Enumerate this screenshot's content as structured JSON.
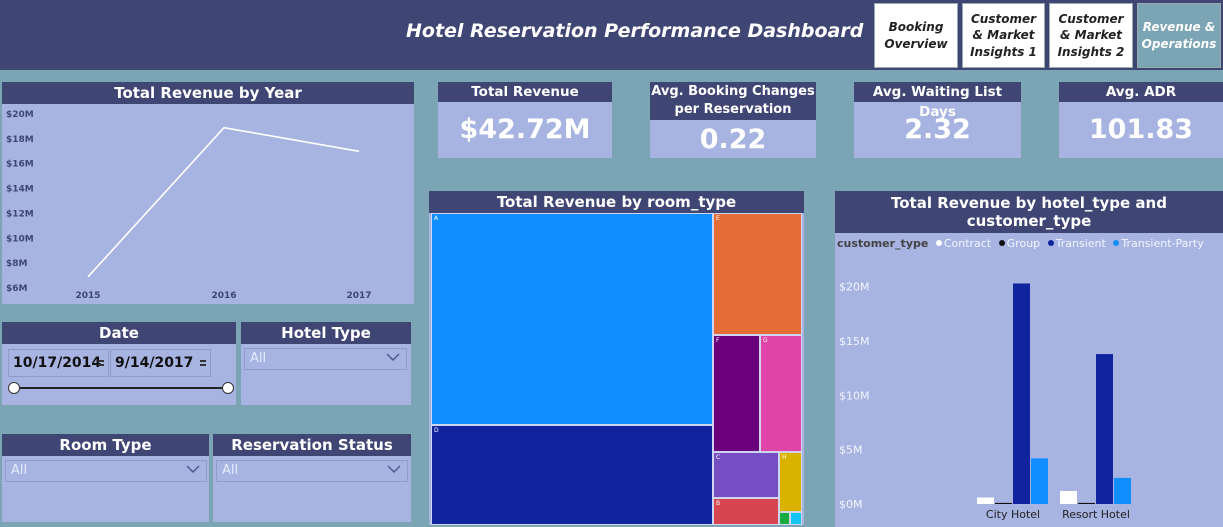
{
  "header": {
    "title": "Hotel Reservation Performance Dashboard",
    "tabs": [
      {
        "label": "Booking Overview",
        "active": false
      },
      {
        "label": "Customer & Market Insights 1",
        "active": false
      },
      {
        "label": "Customer & Market Insights 2",
        "active": false
      },
      {
        "label": "Revenue & Operations",
        "active": true
      }
    ]
  },
  "kpis": {
    "total_revenue": {
      "title": "Total Revenue",
      "value": "$42.72M"
    },
    "avg_booking_changes": {
      "title": "Avg. Booking Changes per Reservation",
      "value": "0.22"
    },
    "avg_waiting_list": {
      "title": "Avg. Waiting List Days",
      "value": "2.32"
    },
    "avg_adr": {
      "title": "Avg. ADR",
      "value": "101.83"
    }
  },
  "slicers": {
    "date": {
      "title": "Date",
      "start": "10/17/2014",
      "end": "9/14/2017"
    },
    "hotel_type": {
      "title": "Hotel Type",
      "value": "All"
    },
    "room_type": {
      "title": "Room Type",
      "value": "All"
    },
    "reservation_status": {
      "title": "Reservation Status",
      "value": "All"
    }
  },
  "chart_data": [
    {
      "type": "line",
      "title": "Total Revenue by Year",
      "x": [
        "2015",
        "2016",
        "2017"
      ],
      "values": [
        6.9,
        18.9,
        17.0
      ],
      "unit": "M",
      "yticks": [
        "$20M",
        "$18M",
        "$16M",
        "$14M",
        "$12M",
        "$10M",
        "$8M",
        "$6M"
      ],
      "ylim": [
        6,
        20
      ],
      "color": "#ffffff"
    },
    {
      "type": "treemap",
      "title": "Total Revenue by room_type",
      "labels": [
        "A",
        "D",
        "E",
        "F",
        "G",
        "C",
        "H",
        "B"
      ],
      "colors": [
        "#118dff",
        "#12239e",
        "#e66c37",
        "#6b007b",
        "#e044a7",
        "#744ec2",
        "#d9b300",
        "#d64550"
      ]
    },
    {
      "type": "bar",
      "title": "Total Revenue by hotel_type and customer_type",
      "legend_title": "customer_type",
      "categories": [
        "City Hotel",
        "Resort Hotel"
      ],
      "yticks": [
        "$20M",
        "$15M",
        "$10M",
        "$5M",
        "$0M"
      ],
      "ylim": [
        0,
        22
      ],
      "series": [
        {
          "name": "Contract",
          "color": "#ffffff",
          "values": [
            0.6,
            1.2
          ]
        },
        {
          "name": "Group",
          "color": "#111111",
          "values": [
            0.1,
            0.1
          ]
        },
        {
          "name": "Transient",
          "color": "#12239e",
          "values": [
            20.3,
            13.8
          ]
        },
        {
          "name": "Transient-Party",
          "color": "#118dff",
          "values": [
            4.2,
            2.4
          ]
        }
      ]
    }
  ]
}
